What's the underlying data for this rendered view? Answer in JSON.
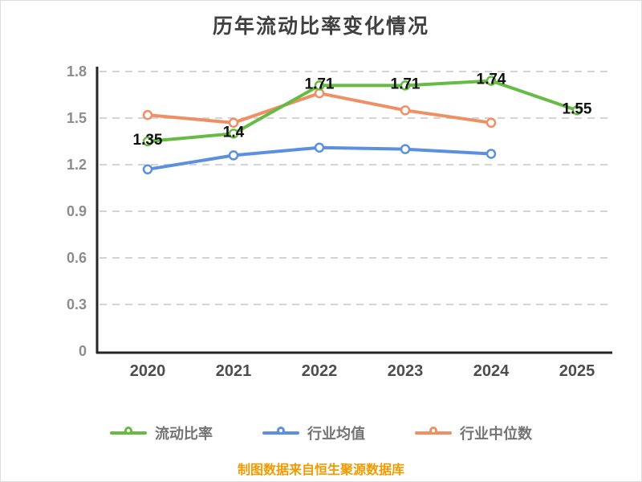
{
  "chart_data": {
    "type": "line",
    "title": "历年流动比率变化情况",
    "xlabel": "",
    "ylabel": "",
    "x": [
      "2020",
      "2021",
      "2022",
      "2023",
      "2024",
      "2025"
    ],
    "ylim": [
      0,
      1.8
    ],
    "yticks": [
      0,
      0.3,
      0.6,
      0.9,
      1.2,
      1.5,
      1.8
    ],
    "grid": "dashed-horizontal",
    "legend_position": "bottom",
    "series": [
      {
        "key": "current-ratio",
        "name": "流动比率",
        "color": "#66bb44",
        "values": [
          1.35,
          1.4,
          1.71,
          1.71,
          1.74,
          1.55
        ],
        "labels": [
          "1.35",
          "1.4",
          "1.71",
          "1.71",
          "1.74",
          "1.55"
        ]
      },
      {
        "key": "industry-average",
        "name": "行业均值",
        "color": "#5b8fe0",
        "values": [
          1.17,
          1.26,
          1.31,
          1.3,
          1.27
        ]
      },
      {
        "key": "industry-median",
        "name": "行业中位数",
        "color": "#ef8f63",
        "values": [
          1.52,
          1.47,
          1.66,
          1.55,
          1.47
        ]
      }
    ],
    "footnote": "制图数据来自恒生聚源数据库"
  },
  "colors": {
    "title": "#404040",
    "axis": "#262626",
    "gridline": "#d4d4d4",
    "x_tick": "#4d4d4d",
    "y_tick": "#8c8c8c",
    "data_label": "#111111",
    "legend_text": "#737373",
    "footnote": "#f29b00",
    "background": "#ffffff"
  }
}
